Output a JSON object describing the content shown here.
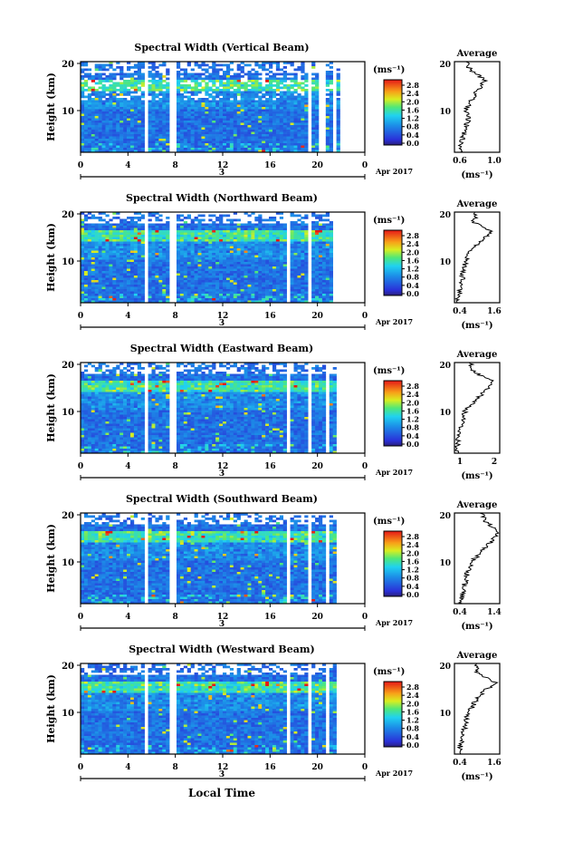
{
  "common": {
    "x_ticks": [
      "0",
      "4",
      "8",
      "12",
      "16",
      "20",
      "0"
    ],
    "date_day": "3",
    "date_label": "Apr 2017",
    "y_label": "Height (km)",
    "y_ticks": [
      "20",
      "10"
    ],
    "colorbar_unit": "(ms⁻¹)",
    "colorbar_ticks": [
      "2.8",
      "2.4",
      "2.0",
      "1.6",
      "1.2",
      "0.8",
      "0.4",
      "0.0"
    ],
    "average_title": "Average",
    "average_xlabel": "(ms⁻¹)",
    "x_axis_title": "Local Time",
    "colors": {
      "low": "#1f2fd6",
      "mid": "#22c3f0",
      "high": "#e8261a",
      "gap": "#ffffff"
    }
  },
  "panels": [
    {
      "title": "Spectral Width (Vertical Beam)",
      "avg_ticks": [
        "0.6",
        "1.0"
      ]
    },
    {
      "title": "Spectral Width (Northward Beam)",
      "avg_ticks": [
        "0.4",
        "1.6"
      ]
    },
    {
      "title": "Spectral Width (Eastward Beam)",
      "avg_ticks": [
        "1",
        "2"
      ]
    },
    {
      "title": "Spectral Width (Southward Beam)",
      "avg_ticks": [
        "0.4",
        "1.4"
      ]
    },
    {
      "title": "Spectral Width (Westward Beam)",
      "avg_ticks": [
        "0.4",
        "1.6"
      ]
    }
  ],
  "chart_data": [
    {
      "type": "heatmap",
      "title": "Spectral Width (Vertical Beam)",
      "xlabel": "",
      "ylabel": "Height (km)",
      "xlim": [
        0,
        24
      ],
      "ylim": [
        1,
        20
      ],
      "colorbar": {
        "label": "(ms⁻¹)",
        "range": [
          0.0,
          3.0
        ]
      },
      "data_gaps_hours": [
        [
          5.4,
          5.8
        ],
        [
          7.6,
          8.0
        ],
        [
          19.2,
          19.6
        ],
        [
          20.2,
          20.7
        ],
        [
          21.2,
          21.5
        ],
        [
          22.0,
          24.0
        ]
      ],
      "average_profile": {
        "xlabel": "(ms⁻¹)",
        "xlim": [
          0.5,
          1.3
        ],
        "heights": [
          2,
          4,
          6,
          8,
          10,
          12,
          14,
          16,
          18,
          20
        ],
        "values": [
          0.6,
          0.65,
          0.7,
          0.75,
          0.7,
          0.8,
          0.9,
          1.05,
          0.8,
          0.7
        ]
      }
    },
    {
      "type": "heatmap",
      "title": "Spectral Width (Northward Beam)",
      "xlabel": "",
      "ylabel": "Height (km)",
      "xlim": [
        0,
        24
      ],
      "ylim": [
        1,
        20
      ],
      "colorbar": {
        "label": "(ms⁻¹)",
        "range": [
          0.0,
          3.0
        ]
      },
      "data_gaps_hours": [
        [
          5.4,
          5.8
        ],
        [
          7.6,
          8.0
        ],
        [
          17.3,
          17.7
        ],
        [
          19.2,
          19.6
        ],
        [
          21.4,
          24.0
        ]
      ],
      "average_profile": {
        "xlabel": "(ms⁻¹)",
        "xlim": [
          0.4,
          1.6
        ],
        "heights": [
          2,
          4,
          6,
          8,
          10,
          12,
          14,
          16,
          18,
          20
        ],
        "values": [
          0.5,
          0.55,
          0.6,
          0.65,
          0.7,
          0.85,
          1.1,
          1.4,
          0.9,
          1.0
        ]
      }
    },
    {
      "type": "heatmap",
      "title": "Spectral Width (Eastward Beam)",
      "xlabel": "",
      "ylabel": "Height (km)",
      "xlim": [
        0,
        24
      ],
      "ylim": [
        1,
        20
      ],
      "colorbar": {
        "label": "(ms⁻¹)",
        "range": [
          0.0,
          3.0
        ]
      },
      "data_gaps_hours": [
        [
          5.4,
          5.8
        ],
        [
          7.6,
          8.0
        ],
        [
          17.3,
          17.7
        ],
        [
          19.2,
          19.6
        ],
        [
          20.7,
          21.1
        ],
        [
          21.6,
          24.0
        ]
      ],
      "average_profile": {
        "xlabel": "(ms⁻¹)",
        "xlim": [
          0.5,
          2.2
        ],
        "heights": [
          2,
          4,
          6,
          8,
          10,
          12,
          14,
          16,
          18,
          20
        ],
        "values": [
          0.6,
          0.65,
          0.7,
          0.8,
          0.9,
          1.3,
          1.6,
          2.0,
          1.2,
          1.1
        ]
      }
    },
    {
      "type": "heatmap",
      "title": "Spectral Width (Southward Beam)",
      "xlabel": "",
      "ylabel": "Height (km)",
      "xlim": [
        0,
        24
      ],
      "ylim": [
        1,
        20
      ],
      "colorbar": {
        "label": "(ms⁻¹)",
        "range": [
          0.0,
          3.0
        ]
      },
      "data_gaps_hours": [
        [
          5.4,
          5.8
        ],
        [
          7.6,
          8.0
        ],
        [
          17.3,
          17.7
        ],
        [
          19.2,
          19.6
        ],
        [
          20.7,
          21.1
        ],
        [
          21.6,
          24.0
        ]
      ],
      "average_profile": {
        "xlabel": "(ms⁻¹)",
        "xlim": [
          0.4,
          1.4
        ],
        "heights": [
          2,
          4,
          6,
          8,
          10,
          12,
          14,
          16,
          18,
          20
        ],
        "values": [
          0.55,
          0.6,
          0.65,
          0.7,
          0.8,
          1.0,
          1.2,
          1.4,
          1.1,
          1.0
        ]
      }
    },
    {
      "type": "heatmap",
      "title": "Spectral Width (Westward Beam)",
      "xlabel": "",
      "ylabel": "Height (km)",
      "xlim": [
        0,
        24
      ],
      "ylim": [
        1,
        20
      ],
      "colorbar": {
        "label": "(ms⁻¹)",
        "range": [
          0.0,
          3.0
        ]
      },
      "data_gaps_hours": [
        [
          5.4,
          5.8
        ],
        [
          7.6,
          8.0
        ],
        [
          17.3,
          17.7
        ],
        [
          19.2,
          19.6
        ],
        [
          20.7,
          21.1
        ],
        [
          21.6,
          24.0
        ]
      ],
      "average_profile": {
        "xlabel": "(ms⁻¹)",
        "xlim": [
          0.4,
          1.6
        ],
        "heights": [
          2,
          4,
          6,
          8,
          10,
          12,
          14,
          16,
          18,
          20
        ],
        "values": [
          0.55,
          0.6,
          0.65,
          0.7,
          0.8,
          0.95,
          1.15,
          1.5,
          1.0,
          1.0
        ]
      }
    }
  ]
}
